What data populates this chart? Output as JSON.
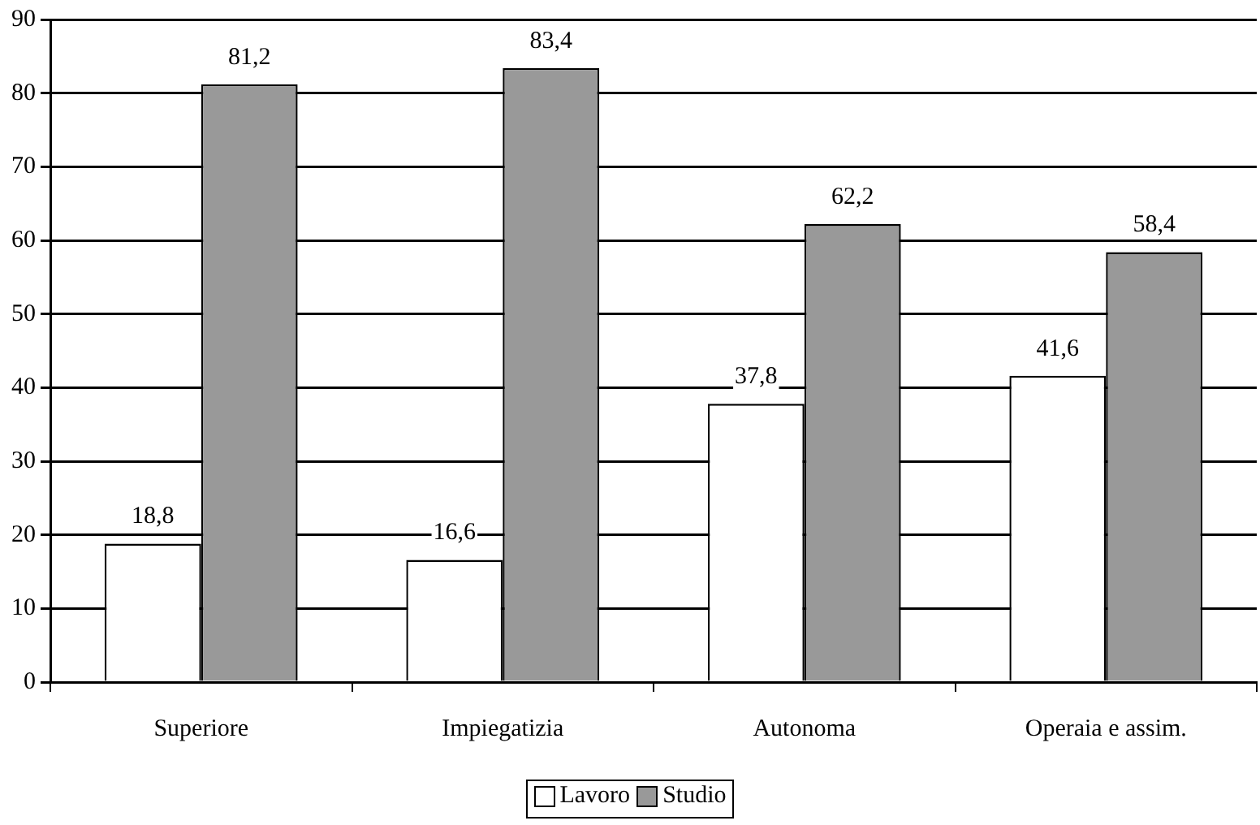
{
  "chart_data": {
    "type": "bar",
    "categories": [
      "Superiore",
      "Impiegatizia",
      "Autonoma",
      "Operaia e assim."
    ],
    "series": [
      {
        "name": "Lavoro",
        "color": "#ffffff",
        "values": [
          18.8,
          16.6,
          37.8,
          41.6
        ],
        "value_labels": [
          "18,8",
          "16,6",
          "37,8",
          "41,6"
        ]
      },
      {
        "name": "Studio",
        "color": "#999999",
        "values": [
          81.2,
          83.4,
          62.2,
          58.4
        ],
        "value_labels": [
          "81,2",
          "83,4",
          "62,2",
          "58,4"
        ]
      }
    ],
    "ylim": [
      0,
      90
    ],
    "yticks": [
      0,
      10,
      20,
      30,
      40,
      50,
      60,
      70,
      80,
      90
    ],
    "grid": "y",
    "legend": "bottom"
  }
}
